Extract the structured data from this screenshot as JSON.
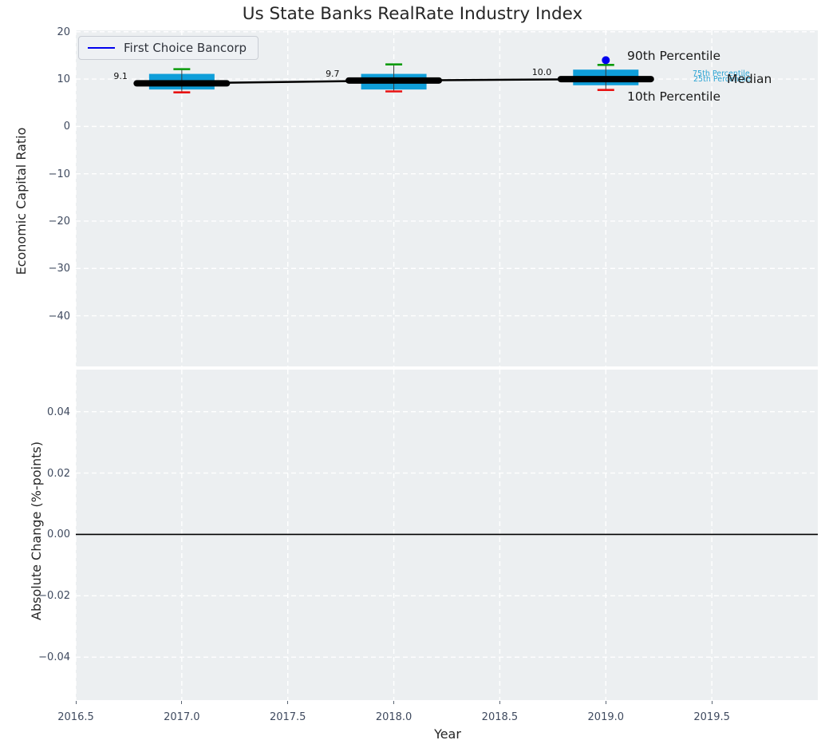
{
  "title": "Us State Banks RealRate Industry Index",
  "legend": {
    "label": "First Choice Bancorp",
    "color": "#0000ee"
  },
  "colors": {
    "box": "#0f9ed9",
    "p90_cap": "#0a9b0a",
    "p10_cap": "#e81111",
    "median_line": "#000000",
    "whisker": "#3a3a3a",
    "company": "#0000ee",
    "percentile_text": "#2ba4d4",
    "plot_bg": "#eceff1",
    "grid": "#ffffff",
    "tick_text": "#3f4a5f"
  },
  "annotations": {
    "p90": "90th Percentile",
    "p75": "75th Percentile",
    "p25": "25th Percentile",
    "median": "Median",
    "p10": "10th Percentile"
  },
  "chart_data": [
    {
      "type": "boxplot",
      "title": "Us State Banks RealRate Industry Index",
      "ylabel": "Economic Capital Ratio",
      "xlabel": "Year",
      "xlim": [
        2016.5,
        2020.0
      ],
      "ylim": [
        -50.7,
        20.3
      ],
      "grid": "white dashed on light gray background",
      "legend_position": "upper left",
      "xticks": [
        {
          "v": 2016.5,
          "label": "2016.5"
        },
        {
          "v": 2017.0,
          "label": "2017.0"
        },
        {
          "v": 2017.5,
          "label": "2017.5"
        },
        {
          "v": 2018.0,
          "label": "2018.0"
        },
        {
          "v": 2018.5,
          "label": "2018.5"
        },
        {
          "v": 2019.0,
          "label": "2019.0"
        },
        {
          "v": 2019.5,
          "label": "2019.5"
        }
      ],
      "yticks": [
        {
          "v": 20,
          "label": "20"
        },
        {
          "v": 10,
          "label": "10"
        },
        {
          "v": 0,
          "label": "0"
        },
        {
          "v": -10,
          "label": "−10"
        },
        {
          "v": -20,
          "label": "−20"
        },
        {
          "v": -30,
          "label": "−30"
        },
        {
          "v": -40,
          "label": "−40"
        }
      ],
      "boxes": [
        {
          "year": 2017,
          "median": 9.1,
          "q1": 7.8,
          "q3": 11.1,
          "p10": 7.2,
          "p90": 12.1,
          "label": "9.1"
        },
        {
          "year": 2018,
          "median": 9.7,
          "q1": 7.8,
          "q3": 11.1,
          "p10": 7.4,
          "p90": 13.1,
          "label": "9.7"
        },
        {
          "year": 2019,
          "median": 10.0,
          "q1": 8.7,
          "q3": 12.0,
          "p10": 7.7,
          "p90": 13.0,
          "label": "10.0"
        }
      ],
      "median_trend": [
        [
          2017,
          9.1
        ],
        [
          2018,
          9.7
        ],
        [
          2019,
          10.0
        ]
      ],
      "company_series": {
        "name": "First Choice Bancorp",
        "points": [
          {
            "x": 2019,
            "y": 14.0
          }
        ]
      }
    },
    {
      "type": "line",
      "ylabel": "Absolute Change (%-points)",
      "xlabel": "Year",
      "xlim": [
        2016.5,
        2020.0
      ],
      "ylim": [
        -0.054,
        0.0537
      ],
      "zero_line": 0.0,
      "series": [],
      "xticks": [
        {
          "v": 2016.5,
          "label": "2016.5"
        },
        {
          "v": 2017.0,
          "label": "2017.0"
        },
        {
          "v": 2017.5,
          "label": "2017.5"
        },
        {
          "v": 2018.0,
          "label": "2018.0"
        },
        {
          "v": 2018.5,
          "label": "2018.5"
        },
        {
          "v": 2019.0,
          "label": "2019.0"
        },
        {
          "v": 2019.5,
          "label": "2019.5"
        }
      ],
      "yticks": [
        {
          "v": 0.04,
          "label": "0.04"
        },
        {
          "v": 0.02,
          "label": "0.02"
        },
        {
          "v": 0.0,
          "label": "0.00"
        },
        {
          "v": -0.02,
          "label": "−0.02"
        },
        {
          "v": -0.04,
          "label": "−0.04"
        }
      ]
    }
  ]
}
